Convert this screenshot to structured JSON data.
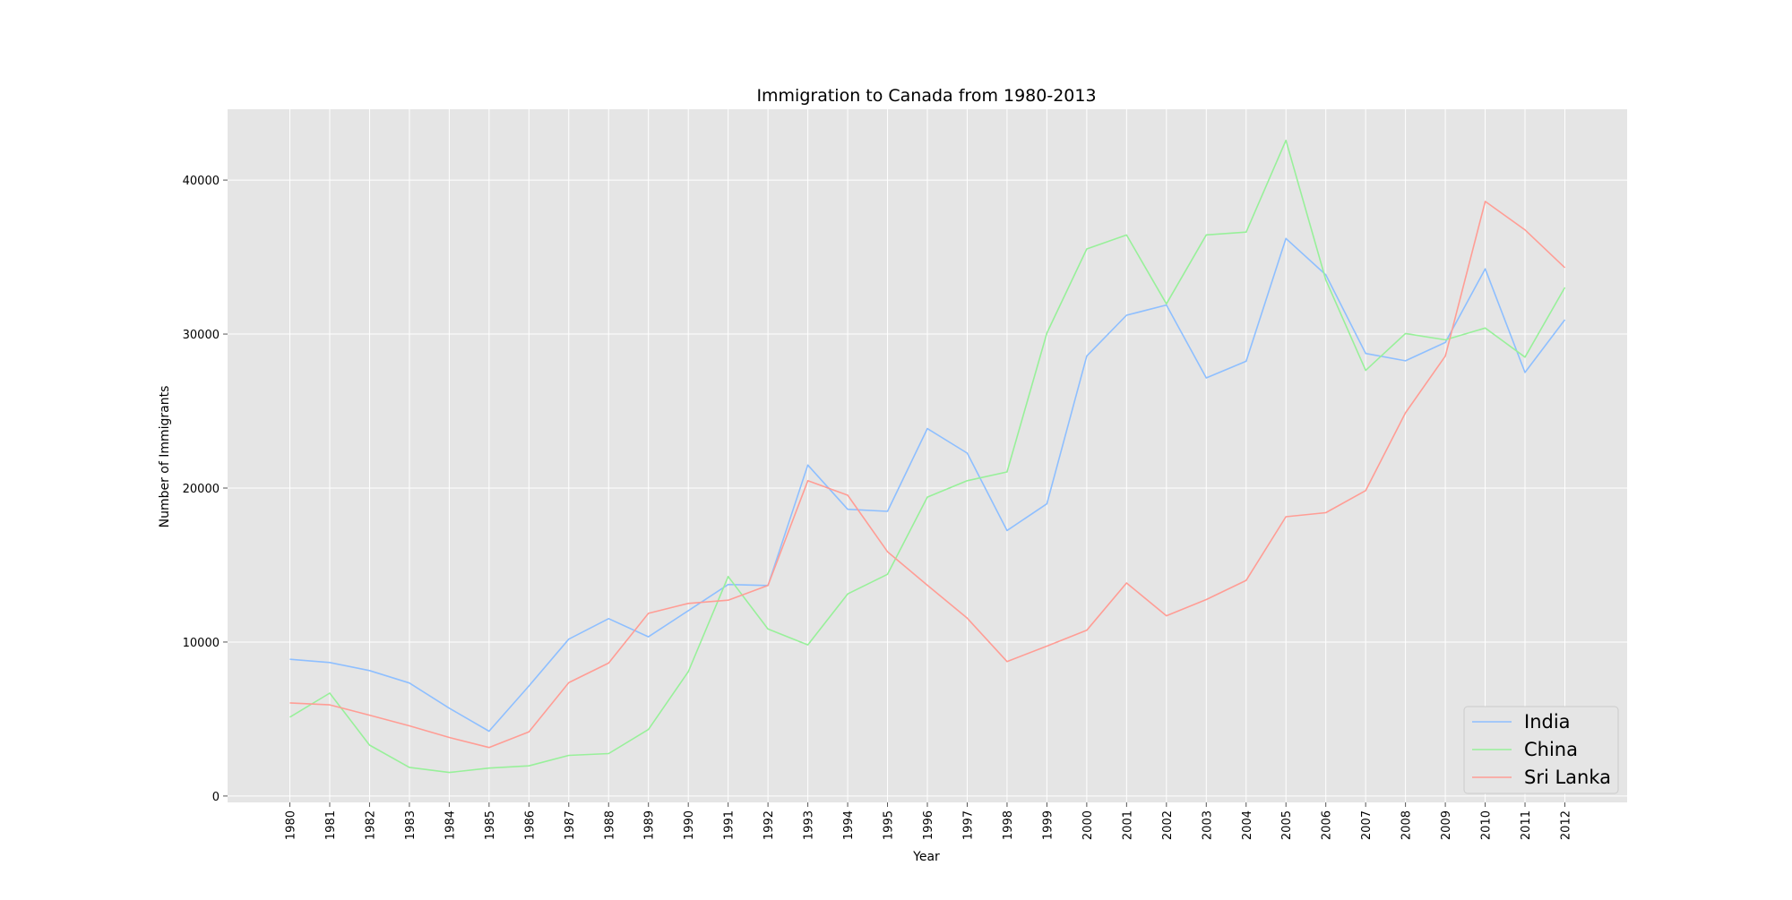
{
  "chart_data": {
    "type": "line",
    "title": "Immigration to Canada from 1980-2013",
    "xlabel": "Year",
    "ylabel": "Number of Immigrants",
    "x": [
      1980,
      1981,
      1982,
      1983,
      1984,
      1985,
      1986,
      1987,
      1988,
      1989,
      1990,
      1991,
      1992,
      1993,
      1994,
      1995,
      1996,
      1997,
      1998,
      1999,
      2000,
      2001,
      2002,
      2003,
      2004,
      2005,
      2006,
      2007,
      2008,
      2009,
      2010,
      2011,
      2012
    ],
    "x_tick_labels": [
      "1980",
      "1981",
      "1982",
      "1983",
      "1984",
      "1985",
      "1986",
      "1987",
      "1988",
      "1989",
      "1990",
      "1991",
      "1992",
      "1993",
      "1994",
      "1995",
      "1996",
      "1997",
      "1998",
      "1999",
      "2000",
      "2001",
      "2002",
      "2003",
      "2004",
      "2005",
      "2006",
      "2007",
      "2008",
      "2009",
      "2010",
      "2011",
      "2012"
    ],
    "y_ticks": [
      0,
      10000,
      20000,
      30000,
      40000
    ],
    "y_tick_labels": [
      "0",
      "10000",
      "20000",
      "30000",
      "40000"
    ],
    "xlim": [
      1978.4,
      1213.6
    ],
    "ylim": [
      -413,
      44600
    ],
    "grid": true,
    "legend_position": "lower-right",
    "background_color": "#e5e5e5",
    "series": [
      {
        "name": "India",
        "color": "#8ebfff",
        "values": [
          8880,
          8670,
          8147,
          7338,
          5704,
          4211,
          7150,
          10189,
          11522,
          10343,
          12041,
          13734,
          13673,
          21496,
          18620,
          18489,
          23859,
          22268,
          17241,
          18974,
          28572,
          31223,
          31889,
          27155,
          28235,
          36210,
          33848,
          28742,
          28261,
          29456,
          34235,
          27509,
          30933
        ]
      },
      {
        "name": "China",
        "color": "#98f09a",
        "values": [
          5123,
          6682,
          3308,
          1863,
          1527,
          1816,
          1960,
          2643,
          2758,
          4323,
          8076,
          14255,
          10846,
          9817,
          13128,
          14398,
          19415,
          20475,
          21049,
          30069,
          35529,
          36434,
          31961,
          36439,
          36619,
          42584,
          33518,
          27642,
          30037,
          29622,
          30391,
          28502,
          33024
        ]
      },
      {
        "name": "Sri Lanka",
        "color": "#ff9d95",
        "values": [
          6051,
          5921,
          5249,
          4562,
          3801,
          3150,
          4166,
          7360,
          8639,
          11865,
          12509,
          12718,
          13670,
          20479,
          19532,
          15864,
          13692,
          11549,
          8735,
          9734,
          10763,
          13836,
          11707,
          12758,
          14004,
          18139,
          18400,
          19837,
          24887,
          28573,
          38617,
          36765,
          34315
        ]
      }
    ]
  }
}
